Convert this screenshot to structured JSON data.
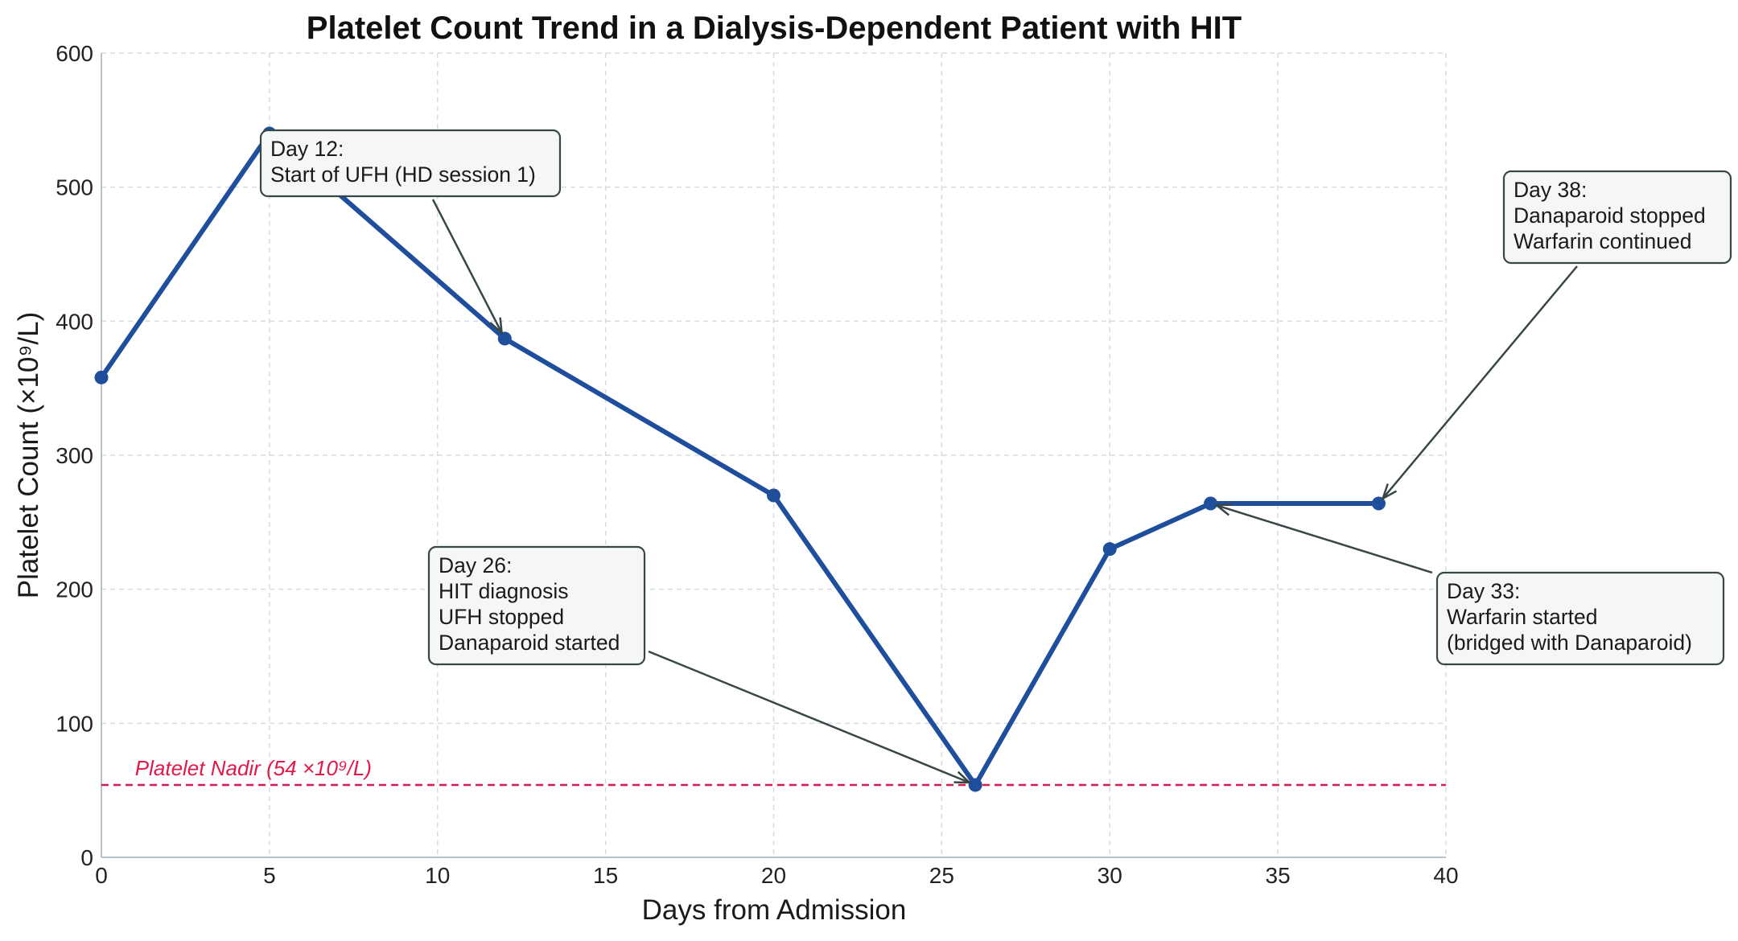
{
  "chart_data": {
    "type": "line",
    "title": "Platelet Count Trend in a Dialysis-Dependent Patient with HIT",
    "xlabel": "Days from Admission",
    "ylabel": "Platelet Count (×10⁹/L)",
    "xlim": [
      0,
      40
    ],
    "ylim": [
      0,
      600
    ],
    "xticks": [
      0,
      5,
      10,
      15,
      20,
      25,
      30,
      35,
      40
    ],
    "yticks": [
      0,
      100,
      200,
      300,
      400,
      500,
      600
    ],
    "grid": true,
    "series": [
      {
        "color": "#1f4e9c",
        "x": [
          0,
          5,
          12,
          20,
          26,
          30,
          33,
          38
        ],
        "y": [
          358,
          540,
          387,
          270,
          54,
          230,
          264,
          264
        ]
      }
    ],
    "reference_line": {
      "y": 54,
      "label": "Platelet Nadir (54 ×10⁹/L)",
      "color": "#e0194a"
    },
    "annotations": [
      {
        "target_x": 12,
        "target_y": 387,
        "lines": [
          "Day 12:",
          "Start of UFH (HD session 1)"
        ]
      },
      {
        "target_x": 26,
        "target_y": 54,
        "lines": [
          "Day 26:",
          "HIT diagnosis",
          "UFH stopped",
          "Danaparoid started"
        ]
      },
      {
        "target_x": 33,
        "target_y": 264,
        "lines": [
          "Day 33:",
          "Warfarin started",
          "(bridged with Danaparoid)"
        ]
      },
      {
        "target_x": 38,
        "target_y": 264,
        "lines": [
          "Day 38:",
          "Danaparoid stopped",
          "Warfarin continued"
        ]
      }
    ]
  }
}
